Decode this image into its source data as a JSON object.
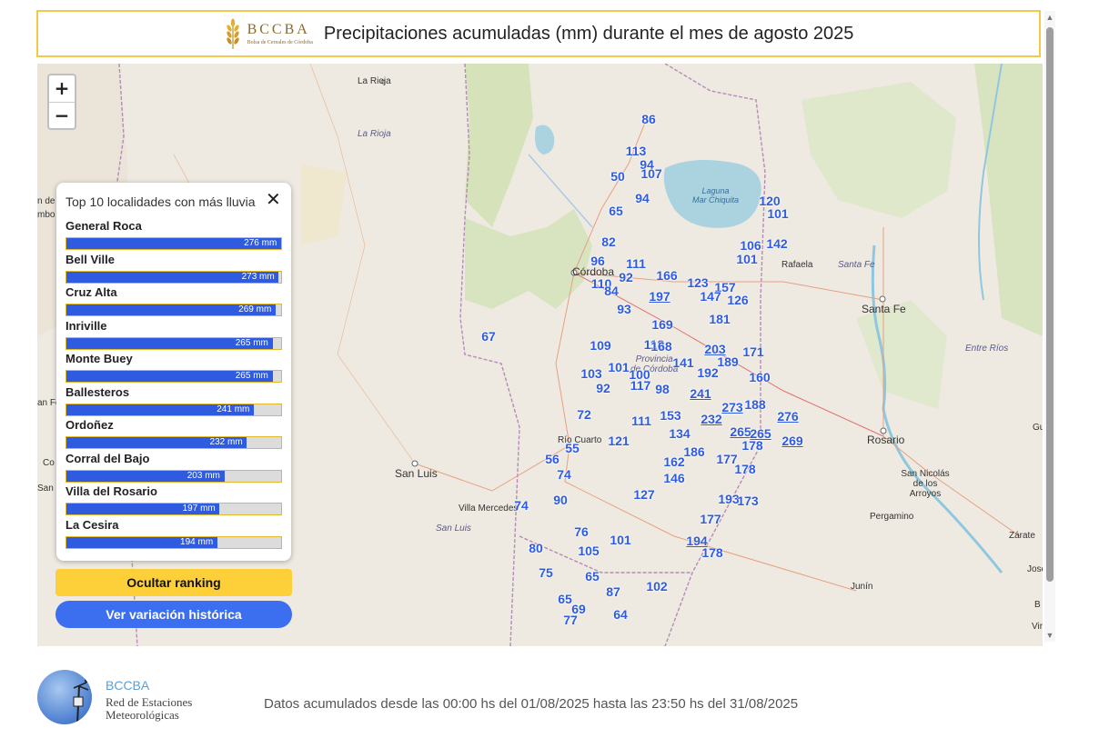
{
  "header": {
    "logo_name": "BCCBA",
    "logo_sub": "Bolsa de Cereales de Córdoba",
    "title": "Precipitaciones acumuladas (mm) durante el mes de agosto 2025"
  },
  "zoom": {
    "in": "+",
    "out": "−"
  },
  "places": {
    "la_rioja_city": "La Rioja",
    "la_rioja_prov": "La Rioja",
    "laguna": "Laguna",
    "mar_chiquita": "Mar Chiquita",
    "cordoba": "Córdoba",
    "provincia": "Provincia",
    "de_cordoba": "de Córdoba",
    "rafaela": "Rafaela",
    "santa_fe_prov": "Santa Fe",
    "santa_fe_city": "Santa Fe",
    "entre_rios": "Entre Ríos",
    "rio_cuarto": "Río Cuarto",
    "san_luis_city": "San Luis",
    "villa_mercedes": "Villa Mercedes",
    "san_luis_prov": "San Luis",
    "rosario": "Rosario",
    "san_nicolas": "San Nicolás de los Arroyos",
    "pergamino": "Pergamino",
    "zarate": "Zárate",
    "junin": "Junín",
    "jose": "José",
    "gu": "Gu",
    "vir": "Vir",
    "b": "B",
    "san": "San",
    "co": "Co",
    "an_fen": "an Fen",
    "n_de": "n de",
    "mbo": "mbo"
  },
  "stations": [
    {
      "v": "86"
    },
    {
      "v": "113"
    },
    {
      "v": "94"
    },
    {
      "v": "107"
    },
    {
      "v": "50"
    },
    {
      "v": "94"
    },
    {
      "v": "65"
    },
    {
      "v": "120"
    },
    {
      "v": "101"
    },
    {
      "v": "82"
    },
    {
      "v": "106"
    },
    {
      "v": "142"
    },
    {
      "v": "101"
    },
    {
      "v": "96"
    },
    {
      "v": "111"
    },
    {
      "v": "166"
    },
    {
      "v": "110"
    },
    {
      "v": "92"
    },
    {
      "v": "123"
    },
    {
      "v": "157"
    },
    {
      "v": "84"
    },
    {
      "v": "197"
    },
    {
      "v": "147"
    },
    {
      "v": "126"
    },
    {
      "v": "93"
    },
    {
      "v": "181"
    },
    {
      "v": "169"
    },
    {
      "v": "67"
    },
    {
      "v": "109"
    },
    {
      "v": "118"
    },
    {
      "v": "168"
    },
    {
      "v": "203"
    },
    {
      "v": "171"
    },
    {
      "v": "141"
    },
    {
      "v": "189"
    },
    {
      "v": "101"
    },
    {
      "v": "103"
    },
    {
      "v": "100"
    },
    {
      "v": "192"
    },
    {
      "v": "160"
    },
    {
      "v": "117"
    },
    {
      "v": "92"
    },
    {
      "v": "98"
    },
    {
      "v": "241"
    },
    {
      "v": "273"
    },
    {
      "v": "188"
    },
    {
      "v": "72"
    },
    {
      "v": "111"
    },
    {
      "v": "153"
    },
    {
      "v": "232"
    },
    {
      "v": "276"
    },
    {
      "v": "134"
    },
    {
      "v": "265"
    },
    {
      "v": "265"
    },
    {
      "v": "121"
    },
    {
      "v": "55"
    },
    {
      "v": "178"
    },
    {
      "v": "269"
    },
    {
      "v": "56"
    },
    {
      "v": "186"
    },
    {
      "v": "162"
    },
    {
      "v": "177"
    },
    {
      "v": "74"
    },
    {
      "v": "146"
    },
    {
      "v": "178"
    },
    {
      "v": "127"
    },
    {
      "v": "90"
    },
    {
      "v": "193"
    },
    {
      "v": "173"
    },
    {
      "v": "74"
    },
    {
      "v": "177"
    },
    {
      "v": "76"
    },
    {
      "v": "101"
    },
    {
      "v": "194"
    },
    {
      "v": "80"
    },
    {
      "v": "105"
    },
    {
      "v": "178"
    },
    {
      "v": "75"
    },
    {
      "v": "65"
    },
    {
      "v": "102"
    },
    {
      "v": "87"
    },
    {
      "v": "65"
    },
    {
      "v": "69"
    },
    {
      "v": "77"
    },
    {
      "v": "64"
    }
  ],
  "ranking": {
    "title": "Top 10 localidades con más lluvia",
    "max": 276,
    "items": [
      {
        "name": "General Roca",
        "value": 276,
        "label": "276 mm"
      },
      {
        "name": "Bell Ville",
        "value": 273,
        "label": "273 mm"
      },
      {
        "name": "Cruz Alta",
        "value": 269,
        "label": "269 mm"
      },
      {
        "name": "Inriville",
        "value": 265,
        "label": "265 mm"
      },
      {
        "name": "Monte Buey",
        "value": 265,
        "label": "265 mm"
      },
      {
        "name": "Ballesteros",
        "value": 241,
        "label": "241 mm"
      },
      {
        "name": "Ordoñez",
        "value": 232,
        "label": "232 mm"
      },
      {
        "name": "Corral del Bajo",
        "value": 203,
        "label": "203 mm"
      },
      {
        "name": "Villa del Rosario",
        "value": 197,
        "label": "197 mm"
      },
      {
        "name": "La Cesira",
        "value": 194,
        "label": "194 mm"
      }
    ]
  },
  "buttons": {
    "hide_ranking": "Ocultar ranking",
    "historical": "Ver variación histórica"
  },
  "footer": {
    "brand": "BCCBA",
    "sub_line1": "Red de Estaciones",
    "sub_line2": "Meteorológicas",
    "note": "Datos acumulados desde las 00:00 hs del 01/08/2025 hasta las 23:50 hs del 31/08/2025"
  },
  "colors": {
    "accent_yellow": "#fdd03a",
    "value_blue": "#2f5be0",
    "button_blue": "#3c6ef0"
  }
}
